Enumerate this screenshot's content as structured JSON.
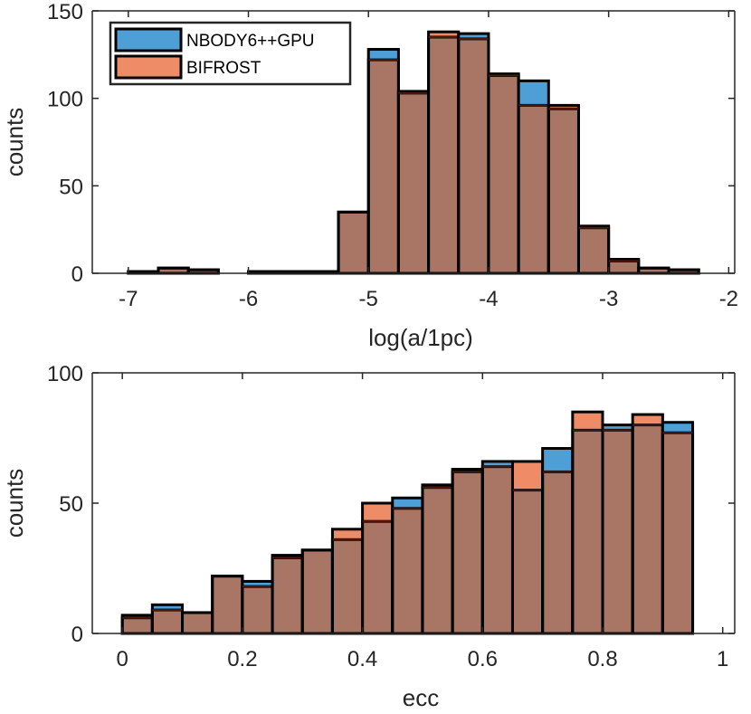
{
  "chart_data": [
    {
      "type": "bar",
      "subtype": "overlaid-histogram",
      "title": "",
      "xlabel": "log(a/1pc)",
      "ylabel": "counts",
      "xlim": [
        -7.3,
        -1.95
      ],
      "ylim": [
        0,
        150
      ],
      "xticks": [
        -7,
        -6,
        -5,
        -4,
        -3,
        -2
      ],
      "xtick_labels": [
        "-7",
        "-6",
        "-5",
        "-4",
        "-3",
        "-2"
      ],
      "yticks": [
        0,
        50,
        100,
        150
      ],
      "ytick_labels": [
        "0",
        "50",
        "100",
        "150"
      ],
      "legend_position": "top-left",
      "bin_edges": [
        -7.0,
        -6.75,
        -6.5,
        -6.25,
        -6.0,
        -5.75,
        -5.5,
        -5.25,
        -5.0,
        -4.75,
        -4.5,
        -4.25,
        -4.0,
        -3.75,
        -3.5,
        -3.25,
        -3.0,
        -2.75,
        -2.5,
        -2.25,
        -2.0
      ],
      "series": [
        {
          "name": "NBODY6++GPU",
          "color": "#4d9fd6",
          "values": [
            1,
            3,
            2,
            0,
            1,
            1,
            1,
            35,
            128,
            104,
            135,
            137,
            114,
            110,
            94,
            27,
            7,
            3,
            2,
            0
          ]
        },
        {
          "name": "BIFROST",
          "color": "#ee8c67",
          "values": [
            1,
            3,
            2,
            0,
            1,
            1,
            1,
            35,
            122,
            103,
            138,
            134,
            113,
            96,
            96,
            26,
            8,
            3,
            2,
            0
          ]
        }
      ]
    },
    {
      "type": "bar",
      "subtype": "overlaid-histogram",
      "title": "",
      "xlabel": "ecc",
      "ylabel": "counts",
      "xlim": [
        -0.05,
        1.02
      ],
      "ylim": [
        0,
        100
      ],
      "xticks": [
        0,
        0.2,
        0.4,
        0.6,
        0.8,
        1
      ],
      "xtick_labels": [
        "0",
        "0.2",
        "0.4",
        "0.6",
        "0.8",
        "1"
      ],
      "yticks": [
        0,
        50,
        100
      ],
      "ytick_labels": [
        "0",
        "50",
        "100"
      ],
      "bin_edges": [
        0.0,
        0.05,
        0.1,
        0.15,
        0.2,
        0.25,
        0.3,
        0.35,
        0.4,
        0.45,
        0.5,
        0.55,
        0.6,
        0.65,
        0.7,
        0.75,
        0.8,
        0.85,
        0.9,
        0.95,
        1.0
      ],
      "series": [
        {
          "name": "NBODY6++GPU",
          "color": "#4d9fd6",
          "values": [
            6,
            11,
            8,
            22,
            20,
            29,
            32,
            36,
            43,
            52,
            57,
            62,
            66,
            55,
            71,
            78,
            80,
            80,
            81,
            0
          ]
        },
        {
          "name": "BIFROST",
          "color": "#ee8c67",
          "values": [
            7,
            9,
            8,
            22,
            18,
            30,
            32,
            40,
            50,
            48,
            56,
            63,
            64,
            66,
            62,
            85,
            78,
            84,
            77,
            0
          ]
        }
      ]
    }
  ]
}
